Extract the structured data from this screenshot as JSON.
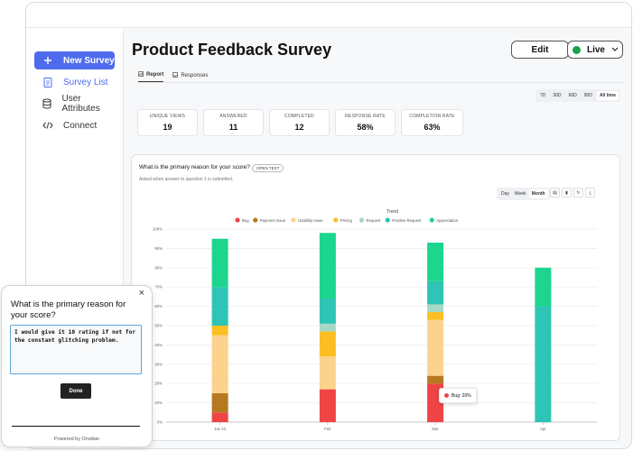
{
  "sidebar": {
    "items": [
      {
        "label": "New Survey",
        "icon": "plus-icon"
      },
      {
        "label": "Survey List",
        "icon": "clipboard-icon"
      },
      {
        "label": "User Attributes",
        "icon": "database-icon"
      },
      {
        "label": "Connect",
        "icon": "code-icon"
      }
    ]
  },
  "header": {
    "title": "Product Feedback Survey",
    "edit_label": "Edit",
    "status_label": "Live",
    "status_color": "#16a34a"
  },
  "tabs": [
    {
      "label": "Report",
      "active": true
    },
    {
      "label": "Responses",
      "active": false
    }
  ],
  "date_range": {
    "options": [
      "7D",
      "30D",
      "60D",
      "90D",
      "All time"
    ],
    "selected": "All time"
  },
  "stats": [
    {
      "label": "UNIQUE VIEWS",
      "value": "19"
    },
    {
      "label": "ANSWERED",
      "value": "11"
    },
    {
      "label": "COMPLETED",
      "value": "12"
    },
    {
      "label": "RESPONSE RATE",
      "value": "58%"
    },
    {
      "label": "COMPLETION RATE",
      "value": "63%"
    }
  ],
  "question_panel": {
    "title": "What is the primary reason for your score?",
    "tag": "OPEN TEXT",
    "subtitle": "Asked when answer to question 1 is submitted.",
    "granularity": {
      "options": [
        "Day",
        "Week",
        "Month"
      ],
      "selected": "Month"
    }
  },
  "chart_data": {
    "type": "bar",
    "stacked": true,
    "title": "Trend",
    "categories": [
      "Jan 23",
      "Feb",
      "Mar",
      "Apr"
    ],
    "ylim": [
      0,
      100
    ],
    "yticks": [
      "0%",
      "10%",
      "20%",
      "30%",
      "40%",
      "50%",
      "60%",
      "70%",
      "80%",
      "90%",
      "100%"
    ],
    "legend_position": "top",
    "series": [
      {
        "name": "Bug",
        "color": "#ef4444",
        "values": [
          5,
          17,
          20,
          0
        ]
      },
      {
        "name": "Payment Issue",
        "color": "#b7791f",
        "values": [
          10,
          0,
          4,
          0
        ]
      },
      {
        "name": "Usability Issue",
        "color": "#fcd38d",
        "values": [
          30,
          17,
          29,
          0
        ]
      },
      {
        "name": "Pricing",
        "color": "#fbbf24",
        "values": [
          5,
          13,
          4,
          0
        ]
      },
      {
        "name": "Request",
        "color": "#a7d7c5",
        "values": [
          0,
          4,
          4,
          0
        ]
      },
      {
        "name": "Positive Request",
        "color": "#2ec4b6",
        "values": [
          20,
          13,
          12,
          60
        ]
      },
      {
        "name": "Appreciation",
        "color": "#1cd58f",
        "values": [
          25,
          34,
          20,
          20
        ]
      }
    ],
    "tooltip": "Bug: 20%"
  },
  "widget": {
    "question": "What is the primary reason for your score?",
    "answer": "I would give it 10 rating if not for the constant glitching problem.",
    "done_label": "Done",
    "powered_by": "Powered by Orodian"
  }
}
